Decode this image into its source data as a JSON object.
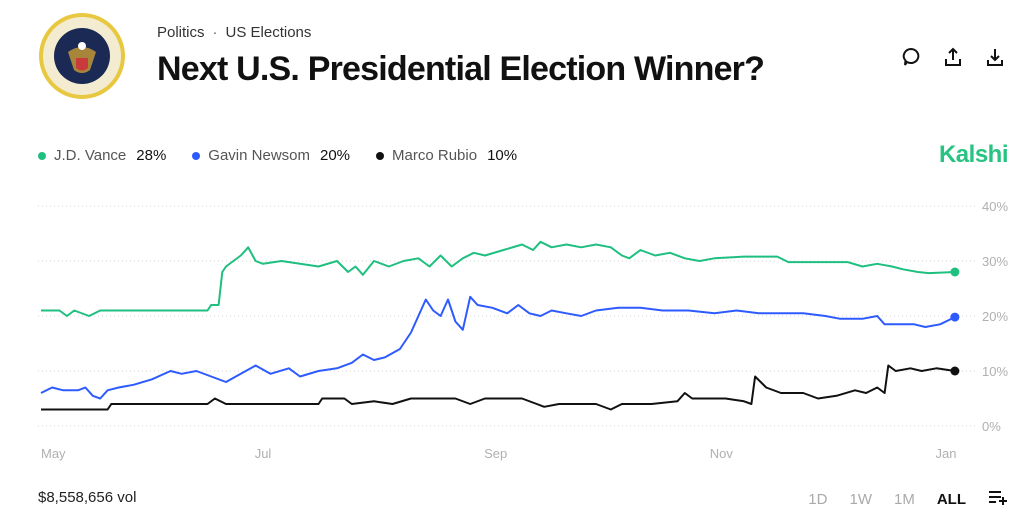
{
  "header": {
    "breadcrumb": [
      "Politics",
      "US Elections"
    ],
    "breadcrumb_separator": "·",
    "title": "Next U.S. Presidential Election Winner?",
    "seal_text": "SEAL OF THE PRESIDENT OF THE UNITED STATES",
    "icons": [
      "comment-icon",
      "share-icon",
      "download-icon"
    ]
  },
  "brand": "Kalshi",
  "colors": {
    "vance": "#1fbf80",
    "newsom": "#2e5bff",
    "rubio": "#111111",
    "brand": "#28c381"
  },
  "footer": {
    "volume": "$8,558,656 vol",
    "ranges": [
      "1D",
      "1W",
      "1M",
      "ALL"
    ],
    "active_range": "ALL",
    "settings_icon": "list-add-icon"
  },
  "chart_data": {
    "type": "line",
    "x_unit": "days since May 1",
    "x_ticks": [
      {
        "label": "May",
        "day": 0
      },
      {
        "label": "Jul",
        "day": 61
      },
      {
        "label": "Sep",
        "day": 123
      },
      {
        "label": "Nov",
        "day": 184
      },
      {
        "label": "Jan",
        "day": 245
      }
    ],
    "y_ticks": [
      "0%",
      "10%",
      "20%",
      "30%",
      "40%"
    ],
    "ylim": [
      0,
      40
    ],
    "grid": "horizontal dotted",
    "legend_placement": "top-left",
    "series": [
      {
        "name": "J.D. Vance",
        "label": "28%",
        "color": "#1fbf80",
        "points": [
          [
            0,
            21
          ],
          [
            5,
            21
          ],
          [
            7,
            20
          ],
          [
            9,
            21
          ],
          [
            13,
            20
          ],
          [
            16,
            21
          ],
          [
            30,
            21
          ],
          [
            45,
            21
          ],
          [
            46,
            22
          ],
          [
            48,
            22
          ],
          [
            49,
            28
          ],
          [
            50,
            29
          ],
          [
            52,
            30
          ],
          [
            54,
            31
          ],
          [
            56,
            32.5
          ],
          [
            58,
            30
          ],
          [
            60,
            29.5
          ],
          [
            65,
            30
          ],
          [
            70,
            29.5
          ],
          [
            75,
            29
          ],
          [
            80,
            30
          ],
          [
            83,
            28
          ],
          [
            85,
            29
          ],
          [
            87,
            27.5
          ],
          [
            90,
            30
          ],
          [
            94,
            29
          ],
          [
            98,
            30
          ],
          [
            102,
            30.5
          ],
          [
            105,
            29
          ],
          [
            108,
            31
          ],
          [
            111,
            29
          ],
          [
            114,
            30.5
          ],
          [
            117,
            31.5
          ],
          [
            120,
            31
          ],
          [
            125,
            32
          ],
          [
            130,
            33
          ],
          [
            133,
            32
          ],
          [
            135,
            33.5
          ],
          [
            138,
            32.5
          ],
          [
            142,
            33
          ],
          [
            146,
            32.5
          ],
          [
            150,
            33
          ],
          [
            154,
            32.5
          ],
          [
            157,
            31
          ],
          [
            159,
            30.5
          ],
          [
            162,
            32
          ],
          [
            166,
            31
          ],
          [
            170,
            31.5
          ],
          [
            174,
            30.5
          ],
          [
            178,
            30
          ],
          [
            182,
            30.5
          ],
          [
            190,
            30.8
          ],
          [
            199,
            30.8
          ],
          [
            202,
            29.8
          ],
          [
            210,
            29.8
          ],
          [
            218,
            29.8
          ],
          [
            222,
            29
          ],
          [
            226,
            29.5
          ],
          [
            230,
            29
          ],
          [
            233,
            28.5
          ],
          [
            237,
            28
          ],
          [
            240,
            27.8
          ],
          [
            247,
            28
          ]
        ]
      },
      {
        "name": "Gavin Newsom",
        "label": "20%",
        "color": "#2e5bff",
        "points": [
          [
            0,
            6
          ],
          [
            3,
            7
          ],
          [
            6,
            6.5
          ],
          [
            10,
            6.5
          ],
          [
            12,
            7
          ],
          [
            14,
            5.5
          ],
          [
            16,
            5
          ],
          [
            18,
            6.5
          ],
          [
            21,
            7
          ],
          [
            25,
            7.5
          ],
          [
            30,
            8.5
          ],
          [
            35,
            10
          ],
          [
            38,
            9.5
          ],
          [
            42,
            10
          ],
          [
            46,
            9
          ],
          [
            50,
            8
          ],
          [
            54,
            9.5
          ],
          [
            58,
            11
          ],
          [
            62,
            9.5
          ],
          [
            67,
            10.5
          ],
          [
            70,
            9
          ],
          [
            75,
            10
          ],
          [
            80,
            10.5
          ],
          [
            84,
            11.5
          ],
          [
            87,
            13
          ],
          [
            90,
            12
          ],
          [
            93,
            12.5
          ],
          [
            97,
            14
          ],
          [
            100,
            17
          ],
          [
            102,
            20
          ],
          [
            104,
            23
          ],
          [
            106,
            21
          ],
          [
            108,
            20
          ],
          [
            110,
            23
          ],
          [
            112,
            19
          ],
          [
            114,
            17.5
          ],
          [
            116,
            23.5
          ],
          [
            118,
            22
          ],
          [
            122,
            21.5
          ],
          [
            126,
            20.5
          ],
          [
            129,
            22
          ],
          [
            132,
            20.5
          ],
          [
            135,
            20
          ],
          [
            138,
            21
          ],
          [
            142,
            20.5
          ],
          [
            146,
            20
          ],
          [
            150,
            21
          ],
          [
            156,
            21.5
          ],
          [
            162,
            21.5
          ],
          [
            168,
            21
          ],
          [
            175,
            21
          ],
          [
            182,
            20.5
          ],
          [
            188,
            21
          ],
          [
            194,
            20.5
          ],
          [
            200,
            20.5
          ],
          [
            206,
            20.5
          ],
          [
            212,
            20
          ],
          [
            216,
            19.5
          ],
          [
            222,
            19.5
          ],
          [
            226,
            20
          ],
          [
            228,
            18.5
          ],
          [
            236,
            18.5
          ],
          [
            239,
            18
          ],
          [
            243,
            18.5
          ],
          [
            247,
            19.8
          ]
        ]
      },
      {
        "name": "Marco Rubio",
        "label": "10%",
        "color": "#111111",
        "points": [
          [
            0,
            3
          ],
          [
            18,
            3
          ],
          [
            19,
            4
          ],
          [
            45,
            4
          ],
          [
            47,
            5
          ],
          [
            50,
            4
          ],
          [
            65,
            4
          ],
          [
            75,
            4
          ],
          [
            76,
            5
          ],
          [
            82,
            5
          ],
          [
            84,
            4
          ],
          [
            90,
            4.5
          ],
          [
            95,
            4
          ],
          [
            100,
            5
          ],
          [
            112,
            5
          ],
          [
            116,
            4
          ],
          [
            120,
            5
          ],
          [
            130,
            5
          ],
          [
            134,
            4
          ],
          [
            136,
            3.5
          ],
          [
            140,
            4
          ],
          [
            150,
            4
          ],
          [
            154,
            3
          ],
          [
            157,
            4
          ],
          [
            165,
            4
          ],
          [
            172,
            4.5
          ],
          [
            174,
            6
          ],
          [
            176,
            5
          ],
          [
            185,
            5
          ],
          [
            190,
            4.5
          ],
          [
            192,
            4
          ],
          [
            193,
            9
          ],
          [
            196,
            7
          ],
          [
            200,
            6
          ],
          [
            206,
            6
          ],
          [
            210,
            5
          ],
          [
            215,
            5.5
          ],
          [
            220,
            6.5
          ],
          [
            223,
            6
          ],
          [
            226,
            7
          ],
          [
            228,
            6
          ],
          [
            229,
            11
          ],
          [
            231,
            10
          ],
          [
            235,
            10.5
          ],
          [
            238,
            10
          ],
          [
            242,
            10.5
          ],
          [
            247,
            10
          ]
        ]
      }
    ]
  }
}
